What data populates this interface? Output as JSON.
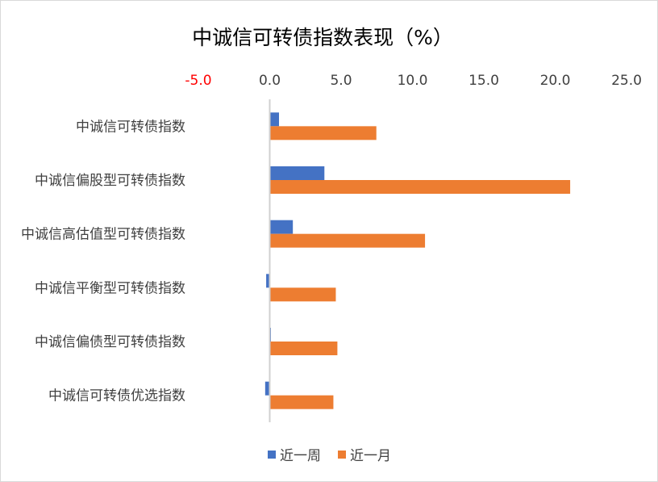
{
  "chart_data": {
    "type": "bar",
    "orientation": "horizontal",
    "title": "中诚信可转债指数表现（%）",
    "categories": [
      "中诚信可转债指数",
      "中诚信偏股型可转债指数",
      "中诚信高估值型可转债指数",
      "中诚信平衡型可转债指数",
      "中诚信偏债型可转债指数",
      "中诚信可转债优选指数"
    ],
    "series": [
      {
        "name": "近一周",
        "color": "#4472c4",
        "values": [
          0.65,
          3.83,
          1.62,
          -0.25,
          0.07,
          -0.32
        ]
      },
      {
        "name": "近一月",
        "color": "#ed7d31",
        "values": [
          7.47,
          21.05,
          10.88,
          4.63,
          4.74,
          4.46
        ]
      }
    ],
    "xlim": [
      -5,
      25
    ],
    "x_ticks": [
      {
        "label": "-5.0",
        "value": -5,
        "color": "#ff0000"
      },
      {
        "label": "0.0",
        "value": 0,
        "color": "#404040"
      },
      {
        "label": "5.0",
        "value": 5,
        "color": "#404040"
      },
      {
        "label": "10.0",
        "value": 10,
        "color": "#404040"
      },
      {
        "label": "15.0",
        "value": 15,
        "color": "#404040"
      },
      {
        "label": "20.0",
        "value": 20,
        "color": "#404040"
      },
      {
        "label": "25.0",
        "value": 25,
        "color": "#404040"
      }
    ],
    "x_axis_position": "top",
    "grid": false,
    "legend_position": "bottom"
  }
}
